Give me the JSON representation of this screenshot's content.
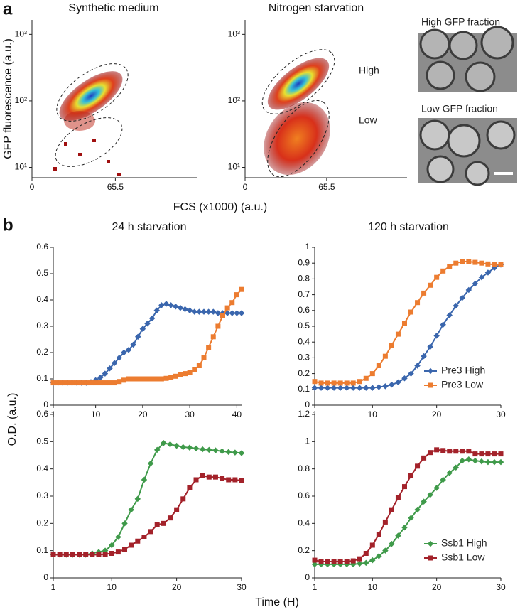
{
  "figure": {
    "panel_a": "a",
    "panel_b": "b",
    "fcs_label": "FCS (x1000) (a.u.)",
    "od_label": "O.D. (a.u.)",
    "time_label": "Time (H)"
  },
  "images": [
    {
      "caption": "High GFP fraction"
    },
    {
      "caption": "Low GFP fraction"
    }
  ],
  "chart_data": [
    {
      "type": "density",
      "title": "Synthetic medium",
      "ylabel": "GFP fluorescence (a.u.)",
      "log": true,
      "xlim": [
        0,
        130
      ],
      "xticks": [
        0,
        65.5
      ],
      "ylim": [
        7,
        1650
      ],
      "yticks": [
        {
          "value": 10,
          "label": "10¹"
        },
        {
          "value": 100,
          "label": "10²"
        },
        {
          "value": 1000,
          "label": "10³"
        }
      ]
    },
    {
      "type": "density",
      "title": "Nitrogen starvation",
      "log": true,
      "annotations": [
        "High",
        "Low"
      ],
      "xlim": [
        0,
        130
      ],
      "xticks": [
        0,
        65.5
      ],
      "ylim": [
        7,
        1650
      ],
      "yticks": [
        {
          "value": 10,
          "label": "10¹"
        },
        {
          "value": 100,
          "label": "10²"
        },
        {
          "value": 1000,
          "label": "10³"
        }
      ]
    },
    {
      "type": "line",
      "title": "24 h    starvation",
      "xlim": [
        1,
        41
      ],
      "xticks": [
        1,
        10,
        20,
        30,
        40
      ],
      "ylim": [
        0,
        0.6
      ],
      "yticks": [
        0,
        0.1,
        0.2,
        0.3,
        0.4,
        0.5,
        0.6
      ],
      "x": [
        1,
        2,
        3,
        4,
        5,
        6,
        7,
        8,
        9,
        10,
        11,
        12,
        13,
        14,
        15,
        16,
        17,
        18,
        19,
        20,
        21,
        22,
        23,
        24,
        25,
        26,
        27,
        28,
        29,
        30,
        31,
        32,
        33,
        34,
        35,
        36,
        37,
        38,
        39,
        40,
        41
      ],
      "series": [
        {
          "name": "Pre3 High",
          "color": "#3a66ad",
          "marker": "diamond",
          "values": [
            0.085,
            0.085,
            0.085,
            0.085,
            0.085,
            0.085,
            0.085,
            0.085,
            0.088,
            0.095,
            0.105,
            0.12,
            0.14,
            0.16,
            0.18,
            0.2,
            0.21,
            0.23,
            0.26,
            0.29,
            0.31,
            0.33,
            0.36,
            0.38,
            0.385,
            0.38,
            0.375,
            0.37,
            0.365,
            0.36,
            0.355,
            0.355,
            0.355,
            0.355,
            0.355,
            0.35,
            0.35,
            0.35,
            0.35,
            0.35,
            0.35
          ]
        },
        {
          "name": "Pre3 Low",
          "color": "#ec7c30",
          "marker": "square",
          "values": [
            0.085,
            0.085,
            0.085,
            0.085,
            0.085,
            0.085,
            0.085,
            0.085,
            0.085,
            0.085,
            0.085,
            0.085,
            0.085,
            0.085,
            0.09,
            0.095,
            0.1,
            0.1,
            0.1,
            0.1,
            0.1,
            0.1,
            0.1,
            0.1,
            0.102,
            0.105,
            0.11,
            0.115,
            0.12,
            0.125,
            0.135,
            0.15,
            0.18,
            0.22,
            0.26,
            0.3,
            0.34,
            0.37,
            0.39,
            0.42,
            0.44
          ]
        }
      ]
    },
    {
      "type": "line",
      "title": "120 h    starvation",
      "xlim": [
        1,
        30
      ],
      "xticks": [
        1,
        10,
        20,
        30
      ],
      "ylim": [
        0,
        1
      ],
      "yticks": [
        0,
        0.1,
        0.2,
        0.3,
        0.4,
        0.5,
        0.6,
        0.7,
        0.8,
        0.9,
        1
      ],
      "legend": "lower right",
      "x": [
        1,
        2,
        3,
        4,
        5,
        6,
        7,
        8,
        9,
        10,
        11,
        12,
        13,
        14,
        15,
        16,
        17,
        18,
        19,
        20,
        21,
        22,
        23,
        24,
        25,
        26,
        27,
        28,
        29,
        30
      ],
      "series": [
        {
          "name": "Pre3 High",
          "color": "#3a66ad",
          "marker": "diamond",
          "values": [
            0.11,
            0.11,
            0.11,
            0.11,
            0.11,
            0.11,
            0.11,
            0.11,
            0.11,
            0.11,
            0.115,
            0.12,
            0.13,
            0.145,
            0.17,
            0.2,
            0.25,
            0.31,
            0.37,
            0.44,
            0.51,
            0.57,
            0.63,
            0.68,
            0.73,
            0.77,
            0.81,
            0.84,
            0.87,
            0.89
          ]
        },
        {
          "name": "Pre3 Low",
          "color": "#ec7c30",
          "marker": "square",
          "values": [
            0.15,
            0.14,
            0.14,
            0.14,
            0.14,
            0.14,
            0.14,
            0.15,
            0.17,
            0.2,
            0.25,
            0.31,
            0.38,
            0.45,
            0.52,
            0.59,
            0.65,
            0.71,
            0.76,
            0.81,
            0.85,
            0.88,
            0.9,
            0.91,
            0.91,
            0.905,
            0.9,
            0.895,
            0.89,
            0.89
          ]
        }
      ]
    },
    {
      "type": "line",
      "xlim": [
        1,
        30
      ],
      "xticks": [
        1,
        10,
        20,
        30
      ],
      "ylim": [
        0,
        0.6
      ],
      "yticks": [
        0,
        0.1,
        0.2,
        0.3,
        0.4,
        0.5,
        0.6
      ],
      "x": [
        1,
        2,
        3,
        4,
        5,
        6,
        7,
        8,
        9,
        10,
        11,
        12,
        13,
        14,
        15,
        16,
        17,
        18,
        19,
        20,
        21,
        22,
        23,
        24,
        25,
        26,
        27,
        28,
        29,
        30
      ],
      "series": [
        {
          "name": "Ssb1 High",
          "color": "#3f9a4a",
          "marker": "diamond",
          "values": [
            0.085,
            0.085,
            0.085,
            0.085,
            0.085,
            0.085,
            0.09,
            0.095,
            0.1,
            0.12,
            0.15,
            0.2,
            0.25,
            0.29,
            0.36,
            0.42,
            0.47,
            0.495,
            0.49,
            0.485,
            0.48,
            0.478,
            0.475,
            0.472,
            0.47,
            0.468,
            0.465,
            0.462,
            0.46,
            0.458
          ]
        },
        {
          "name": "Ssb1 Low",
          "color": "#a3222a",
          "marker": "square",
          "values": [
            0.085,
            0.085,
            0.085,
            0.085,
            0.085,
            0.085,
            0.085,
            0.085,
            0.087,
            0.09,
            0.095,
            0.105,
            0.12,
            0.135,
            0.15,
            0.17,
            0.195,
            0.2,
            0.22,
            0.25,
            0.29,
            0.33,
            0.36,
            0.375,
            0.37,
            0.37,
            0.365,
            0.36,
            0.36,
            0.357
          ]
        }
      ]
    },
    {
      "type": "line",
      "xlim": [
        1,
        30
      ],
      "xticks": [
        1,
        10,
        20,
        30
      ],
      "ylim": [
        0,
        1.2
      ],
      "yticks": [
        0,
        0.2,
        0.4,
        0.6,
        0.8,
        1,
        1.2
      ],
      "legend": "lower right",
      "x": [
        1,
        2,
        3,
        4,
        5,
        6,
        7,
        8,
        9,
        10,
        11,
        12,
        13,
        14,
        15,
        16,
        17,
        18,
        19,
        20,
        21,
        22,
        23,
        24,
        25,
        26,
        27,
        28,
        29,
        30
      ],
      "series": [
        {
          "name": "Ssb1 High",
          "color": "#3f9a4a",
          "marker": "diamond",
          "values": [
            0.1,
            0.1,
            0.1,
            0.1,
            0.1,
            0.1,
            0.1,
            0.105,
            0.11,
            0.13,
            0.16,
            0.2,
            0.25,
            0.31,
            0.37,
            0.44,
            0.5,
            0.56,
            0.61,
            0.66,
            0.72,
            0.77,
            0.81,
            0.86,
            0.87,
            0.86,
            0.855,
            0.85,
            0.85,
            0.85
          ]
        },
        {
          "name": "Ssb1 Low",
          "color": "#a3222a",
          "marker": "square",
          "values": [
            0.13,
            0.12,
            0.12,
            0.12,
            0.12,
            0.12,
            0.125,
            0.14,
            0.18,
            0.24,
            0.32,
            0.41,
            0.5,
            0.59,
            0.67,
            0.75,
            0.82,
            0.88,
            0.92,
            0.94,
            0.935,
            0.93,
            0.93,
            0.93,
            0.93,
            0.91,
            0.91,
            0.91,
            0.91,
            0.91
          ]
        }
      ]
    }
  ]
}
